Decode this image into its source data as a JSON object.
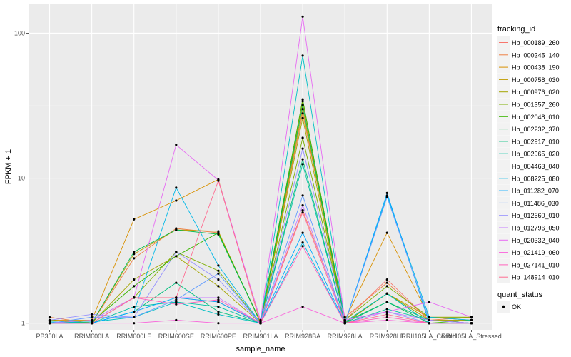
{
  "chart_data": {
    "type": "line",
    "xlabel": "sample_name",
    "ylabel": "FPKM + 1",
    "y_scale": "log10",
    "ylim": [
      0.9,
      160
    ],
    "y_ticks": [
      {
        "value": 1,
        "label": "1"
      },
      {
        "value": 10,
        "label": "10"
      },
      {
        "value": 100,
        "label": "100"
      }
    ],
    "categories": [
      "PB350LA",
      "RRIM600LA",
      "RRIM600LE",
      "RRIM600SE",
      "RRIM600PE",
      "RRIM901LA",
      "RRIM928BA",
      "RRIM928LA",
      "RRIM928LE",
      "RRII105LA_Control",
      "RRII105LA_Stressed"
    ],
    "grid": true,
    "legend_position": "right",
    "legend_title": "tracking_id",
    "series": [
      {
        "name": "Hb_000189_260",
        "color": "#F8766D",
        "values": [
          1.0,
          1.05,
          1.5,
          1.5,
          1.4,
          1.0,
          6.0,
          1.05,
          2.0,
          1.05,
          1.05
        ]
      },
      {
        "name": "Hb_000245_140",
        "color": "#EE8044",
        "values": [
          1.1,
          1.0,
          2.8,
          4.5,
          4.2,
          1.02,
          28.0,
          1.1,
          1.9,
          1.05,
          1.1
        ]
      },
      {
        "name": "Hb_000438_190",
        "color": "#D89000",
        "values": [
          1.05,
          1.05,
          5.2,
          7.0,
          9.8,
          1.0,
          34.0,
          1.05,
          4.2,
          1.1,
          1.1
        ]
      },
      {
        "name": "Hb_000758_030",
        "color": "#C09B00",
        "values": [
          1.0,
          1.0,
          3.0,
          4.4,
          4.3,
          1.0,
          30.0,
          1.0,
          1.6,
          1.1,
          1.05
        ]
      },
      {
        "name": "Hb_000976_020",
        "color": "#A3A500",
        "values": [
          1.0,
          1.0,
          2.0,
          2.9,
          1.8,
          1.0,
          26.0,
          1.0,
          1.6,
          1.05,
          1.05
        ]
      },
      {
        "name": "Hb_001357_260",
        "color": "#7CAE00",
        "values": [
          1.05,
          1.0,
          1.5,
          3.1,
          2.3,
          1.0,
          19.0,
          1.05,
          1.8,
          1.1,
          1.1
        ]
      },
      {
        "name": "Hb_002048_010",
        "color": "#39B600",
        "values": [
          1.0,
          1.02,
          1.8,
          2.9,
          4.2,
          1.02,
          35.0,
          1.02,
          1.6,
          1.0,
          1.05
        ]
      },
      {
        "name": "Hb_002232_370",
        "color": "#00BB4E",
        "values": [
          1.0,
          1.0,
          3.1,
          4.4,
          4.1,
          1.02,
          32.0,
          1.02,
          1.4,
          1.0,
          1.0
        ]
      },
      {
        "name": "Hb_002917_010",
        "color": "#00BF7D",
        "values": [
          1.0,
          1.0,
          1.2,
          1.9,
          1.2,
          1.0,
          13.5,
          1.0,
          1.4,
          1.05,
          1.0
        ]
      },
      {
        "name": "Hb_002965_020",
        "color": "#00C1A3",
        "values": [
          1.02,
          1.0,
          1.3,
          1.4,
          1.3,
          1.0,
          12.5,
          1.0,
          1.25,
          1.05,
          1.0
        ]
      },
      {
        "name": "Hb_004463_040",
        "color": "#00BFC4",
        "values": [
          1.02,
          1.02,
          1.1,
          1.4,
          1.15,
          1.0,
          70.0,
          1.02,
          1.6,
          1.0,
          1.0
        ]
      },
      {
        "name": "Hb_008225_080",
        "color": "#00B8E7",
        "values": [
          1.0,
          1.0,
          1.2,
          8.6,
          2.5,
          1.0,
          3.6,
          1.0,
          7.6,
          1.1,
          1.05
        ]
      },
      {
        "name": "Hb_011282_070",
        "color": "#00A9FF",
        "values": [
          1.0,
          1.0,
          1.2,
          1.5,
          1.4,
          1.0,
          4.2,
          1.0,
          7.9,
          1.0,
          1.0
        ]
      },
      {
        "name": "Hb_011486_030",
        "color": "#619CFF",
        "values": [
          1.0,
          1.1,
          1.1,
          1.45,
          2.2,
          1.0,
          7.6,
          1.0,
          7.4,
          1.05,
          1.0
        ]
      },
      {
        "name": "Hb_012660_010",
        "color": "#9590FF",
        "values": [
          1.05,
          1.15,
          1.1,
          3.1,
          2.0,
          1.0,
          16.0,
          1.05,
          1.2,
          1.0,
          1.0
        ]
      },
      {
        "name": "Hb_012796_050",
        "color": "#C77CFF",
        "values": [
          1.0,
          1.05,
          1.5,
          1.5,
          1.5,
          1.0,
          6.5,
          1.0,
          1.2,
          1.05,
          1.0
        ]
      },
      {
        "name": "Hb_020332_040",
        "color": "#E76BF3",
        "values": [
          1.0,
          1.0,
          1.5,
          17.0,
          9.7,
          1.05,
          130.0,
          1.05,
          1.2,
          1.4,
          1.1
        ]
      },
      {
        "name": "Hb_021419_060",
        "color": "#FA62DB",
        "values": [
          1.0,
          1.0,
          1.0,
          1.05,
          1.0,
          1.0,
          1.3,
          1.0,
          1.05,
          1.0,
          1.0
        ]
      },
      {
        "name": "Hb_027141_010",
        "color": "#FF62BC",
        "values": [
          1.0,
          1.0,
          1.5,
          1.35,
          1.45,
          1.0,
          3.4,
          1.0,
          1.1,
          1.0,
          1.0
        ]
      },
      {
        "name": "Hb_148914_010",
        "color": "#FF6C91",
        "values": [
          1.0,
          1.0,
          1.5,
          1.5,
          9.6,
          1.0,
          5.8,
          1.0,
          1.15,
          1.0,
          1.0
        ]
      }
    ],
    "shape_legend": {
      "title": "quant_status",
      "items": [
        {
          "label": "OK"
        }
      ]
    }
  }
}
